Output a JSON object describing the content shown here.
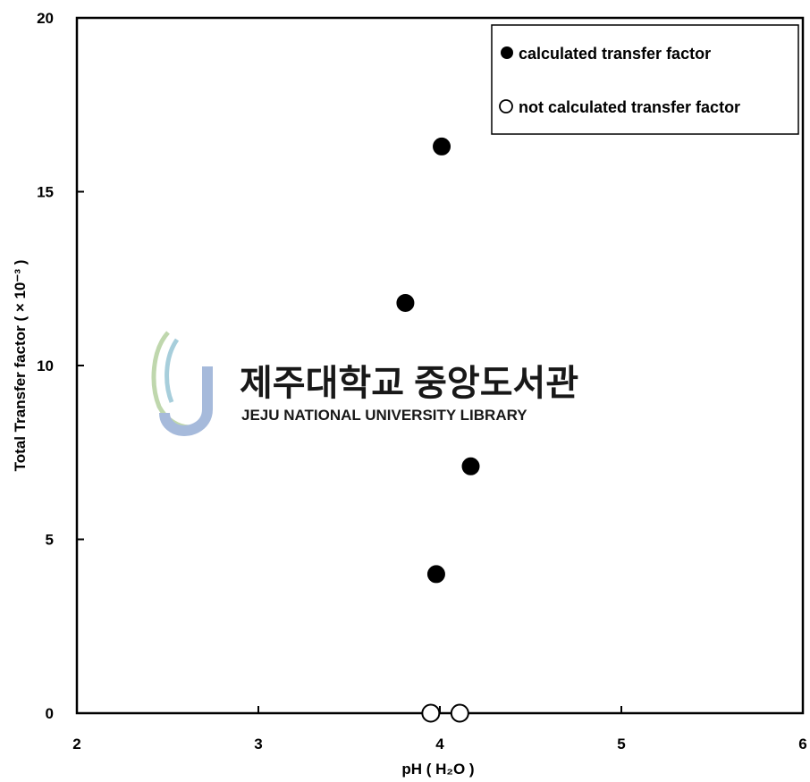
{
  "chart_data": {
    "type": "scatter",
    "xlabel": "pH ( H₂O )",
    "ylabel": "Total Transfer factor ( × 10⁻³ )",
    "xlim": [
      2,
      6
    ],
    "ylim": [
      0,
      20
    ],
    "xticks": [
      "2",
      "3",
      "4",
      "5",
      "6"
    ],
    "yticks": [
      "0",
      "5",
      "10",
      "15",
      "20"
    ],
    "grid": false,
    "legend_position": "top-right",
    "series": [
      {
        "name": "calculated transfer factor",
        "marker": "filled-circle",
        "x": [
          4.01,
          3.81,
          4.17,
          3.98
        ],
        "y": [
          16.3,
          11.8,
          7.1,
          4.0
        ]
      },
      {
        "name": "not calculated transfer factor",
        "marker": "open-circle",
        "x": [
          3.95,
          4.11
        ],
        "y": [
          0,
          0
        ]
      }
    ]
  },
  "watermark": {
    "title_ko": "제주대학교 중앙도서관",
    "subtitle_en": "JEJU NATIONAL UNIVERSITY LIBRARY"
  },
  "colors": {
    "marker": "#000000",
    "watermark_logo_blue": "#9db3d8",
    "watermark_logo_green": "#b9d3a5",
    "watermark_text": "#cfcfcf"
  }
}
